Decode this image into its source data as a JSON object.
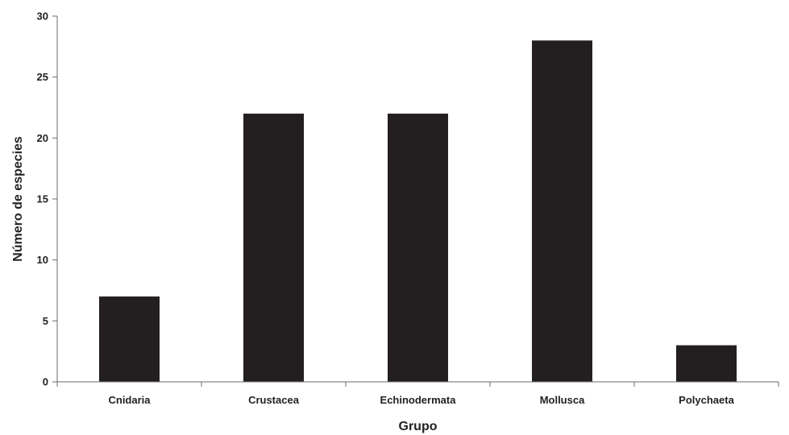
{
  "chart_data": {
    "type": "bar",
    "categories": [
      "Cnidaria",
      "Crustacea",
      "Echinodermata",
      "Mollusca",
      "Polychaeta"
    ],
    "values": [
      7,
      22,
      22,
      28,
      3
    ],
    "title": "",
    "xlabel": "Grupo",
    "ylabel": "Número de especies",
    "ylim": [
      0,
      30
    ],
    "yticks": [
      0,
      5,
      10,
      15,
      20,
      25,
      30
    ],
    "grid": false,
    "legend": "none",
    "bar_color": "#231f20"
  }
}
